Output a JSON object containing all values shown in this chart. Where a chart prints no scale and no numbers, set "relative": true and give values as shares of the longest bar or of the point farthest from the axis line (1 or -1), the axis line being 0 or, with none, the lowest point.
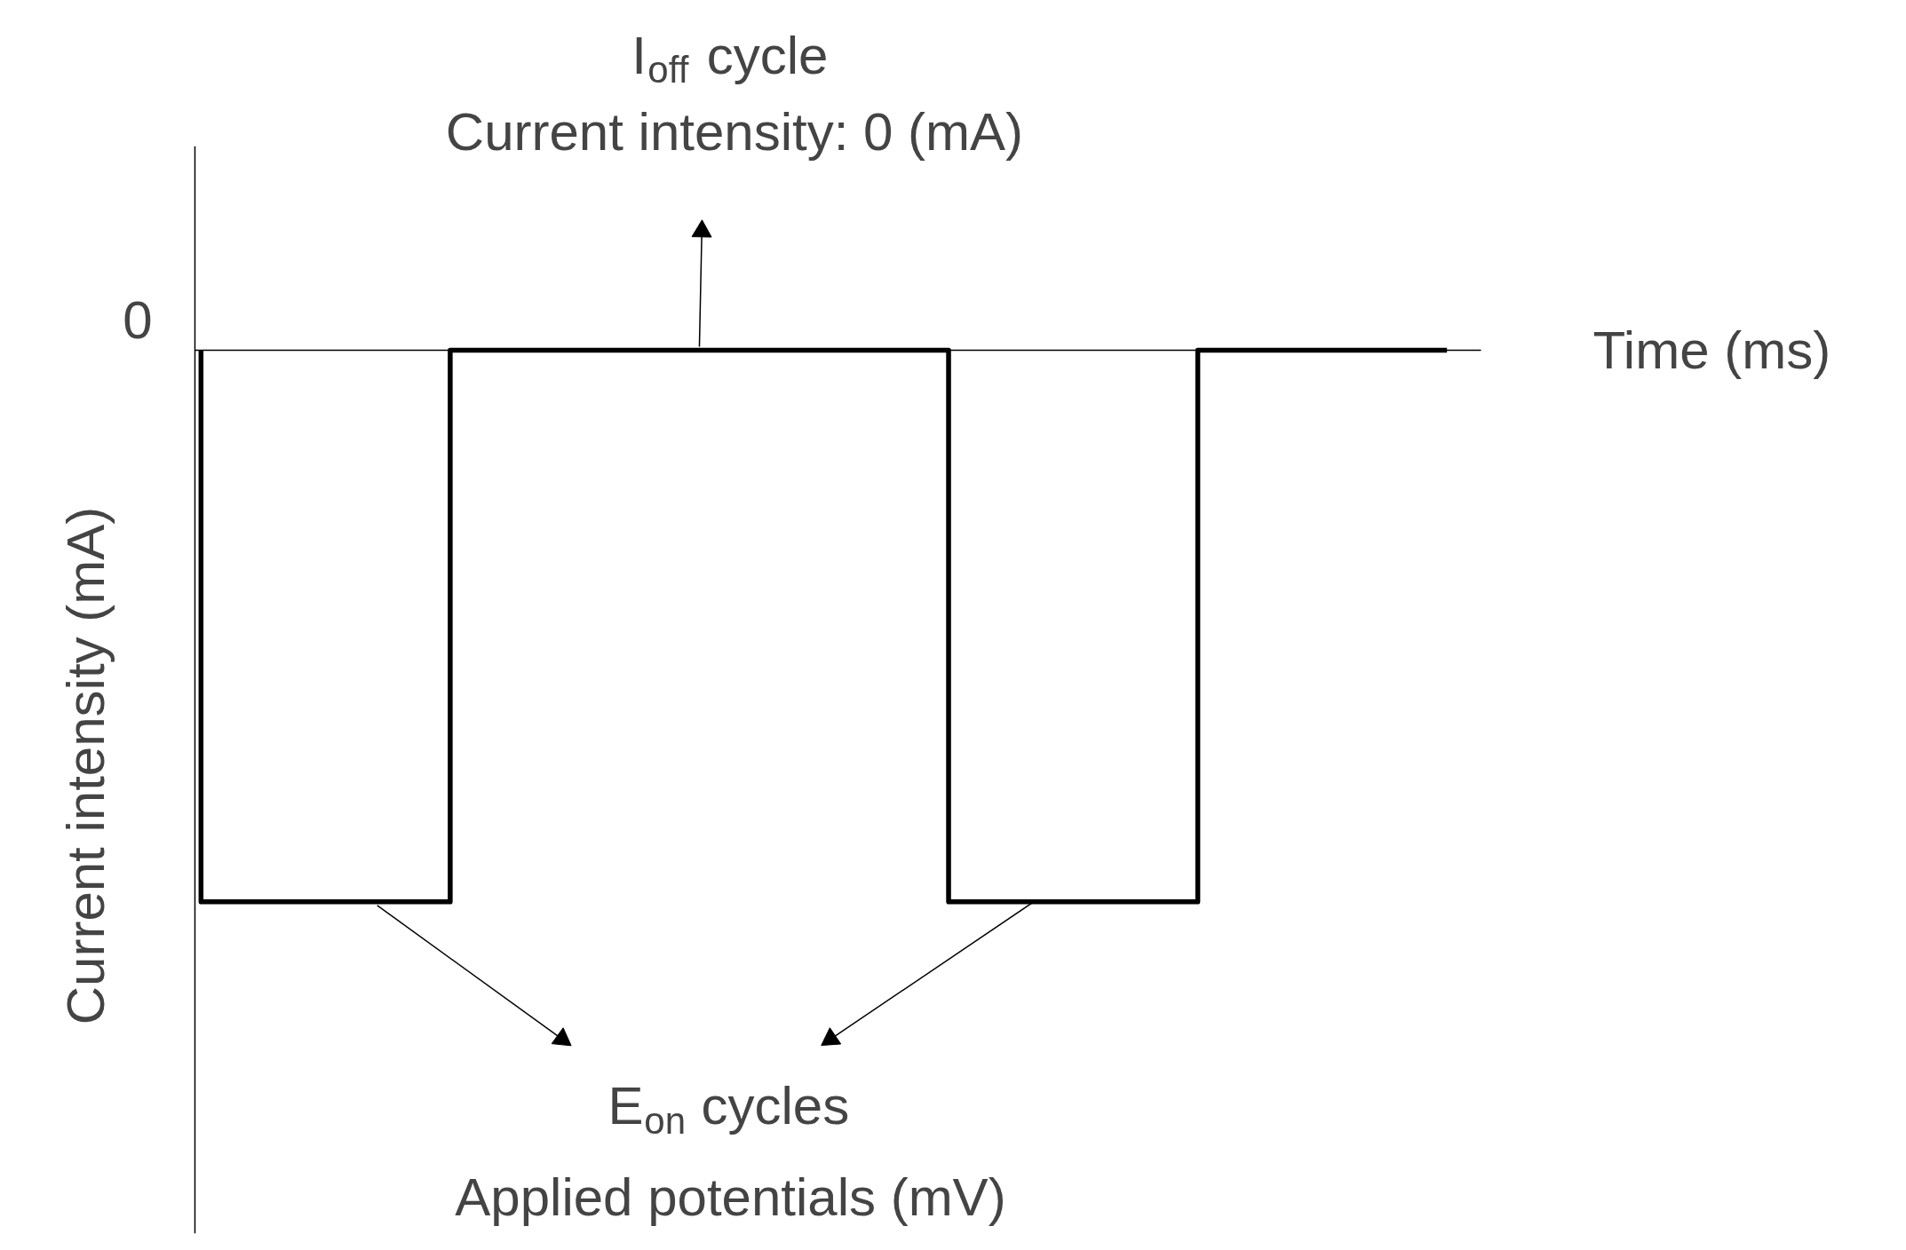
{
  "chart_data": {
    "type": "step",
    "relative": true,
    "categories": [
      null,
      null,
      null,
      null,
      null,
      null
    ],
    "series": [
      {
        "color": "#000000",
        "values": [
          0,
          -1,
          0,
          0,
          -1,
          0
        ]
      }
    ],
    "xlabel": "Time (ms)",
    "ylabel": "Current intensity (mA)",
    "annotations": [
      "0",
      "I$_{off}$ cycle\nCurrent intensity: 0 (mA)",
      "E$_{on}$ cycles\nApplied potentials (mV)"
    ],
    "grid": false,
    "tick_labels": false,
    "line_style": "solid",
    "marker": "none"
  }
}
